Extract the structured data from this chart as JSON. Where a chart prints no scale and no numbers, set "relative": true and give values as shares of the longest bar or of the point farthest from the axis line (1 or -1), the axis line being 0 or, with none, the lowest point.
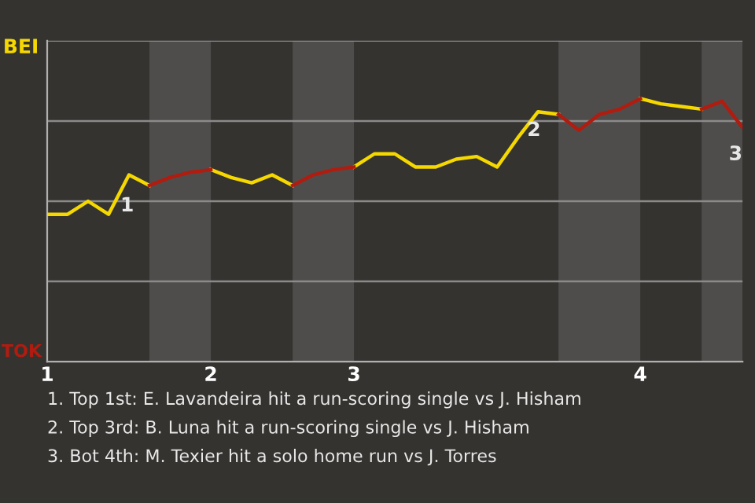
{
  "chart_data": {
    "type": "line",
    "relative": true,
    "categories": [
      "1",
      null,
      null,
      null,
      null,
      null,
      null,
      null,
      "2",
      null,
      null,
      null,
      null,
      null,
      null,
      "3",
      null,
      null,
      null,
      null,
      null,
      null,
      null,
      null,
      null,
      null,
      null,
      null,
      null,
      "4",
      null,
      null,
      null,
      null,
      null
    ],
    "series": [
      {
        "color": "#f5d800",
        "values": [
          0.56,
          0.56,
          0.61,
          0.56,
          0.71,
          0.67,
          null,
          null,
          0.73,
          0.7,
          0.68,
          0.71,
          0.67,
          null,
          null,
          0.74,
          0.79,
          0.79,
          0.74,
          0.74,
          0.77,
          0.78,
          0.74,
          0.85,
          0.95,
          0.94,
          null,
          null,
          null,
          1,
          0.98,
          0.97,
          0.96,
          null,
          null
        ]
      },
      {
        "color": "#b01c10",
        "values": [
          null,
          null,
          null,
          null,
          null,
          0.67,
          0.7,
          0.72,
          0.73,
          null,
          null,
          null,
          0.67,
          0.71,
          0.73,
          0.74,
          null,
          null,
          null,
          null,
          null,
          null,
          null,
          null,
          null,
          0.94,
          0.88,
          0.94,
          0.96,
          1,
          null,
          null,
          0.96,
          0.99,
          0.89
        ]
      }
    ],
    "grid": "y",
    "annotations": [
      "BEI",
      "TOK",
      "1",
      "2",
      "3",
      "1. Top 1st: E. Lavandeira hit a run-scoring single vs J. Hisham",
      "2. Top 3rd: B. Luna hit a run-scoring single vs J. Hisham",
      "3. Bot 4th: M. Texier hit a solo home run vs J. Torres"
    ]
  }
}
